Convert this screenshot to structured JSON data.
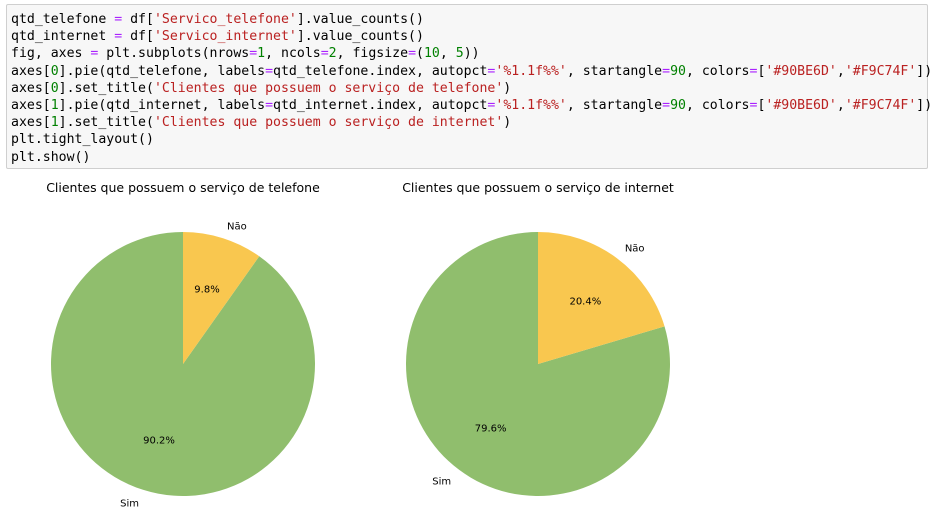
{
  "code": {
    "lines": [
      [
        {
          "t": "qtd_telefone "
        },
        {
          "t": "=",
          "c": "op"
        },
        {
          "t": " df["
        },
        {
          "t": "'Servico_telefone'",
          "c": "str"
        },
        {
          "t": "].value_counts()"
        }
      ],
      [
        {
          "t": "qtd_internet "
        },
        {
          "t": "=",
          "c": "op"
        },
        {
          "t": " df["
        },
        {
          "t": "'Servico_internet'",
          "c": "str"
        },
        {
          "t": "].value_counts()"
        }
      ],
      [
        {
          "t": "fig, axes "
        },
        {
          "t": "=",
          "c": "op"
        },
        {
          "t": " plt.subplots(nrows"
        },
        {
          "t": "=",
          "c": "op"
        },
        {
          "t": "1",
          "c": "num"
        },
        {
          "t": ", ncols"
        },
        {
          "t": "=",
          "c": "op"
        },
        {
          "t": "2",
          "c": "num"
        },
        {
          "t": ", figsize"
        },
        {
          "t": "=",
          "c": "op"
        },
        {
          "t": "("
        },
        {
          "t": "10",
          "c": "num"
        },
        {
          "t": ", "
        },
        {
          "t": "5",
          "c": "num"
        },
        {
          "t": "))"
        }
      ],
      [
        {
          "t": "axes["
        },
        {
          "t": "0",
          "c": "num"
        },
        {
          "t": "].pie(qtd_telefone, labels"
        },
        {
          "t": "=",
          "c": "op"
        },
        {
          "t": "qtd_telefone.index, autopct"
        },
        {
          "t": "=",
          "c": "op"
        },
        {
          "t": "'%1.1f%%'",
          "c": "str"
        },
        {
          "t": ", startangle"
        },
        {
          "t": "=",
          "c": "op"
        },
        {
          "t": "90",
          "c": "num"
        },
        {
          "t": ", colors"
        },
        {
          "t": "=",
          "c": "op"
        },
        {
          "t": "["
        },
        {
          "t": "'#90BE6D'",
          "c": "str"
        },
        {
          "t": ","
        },
        {
          "t": "'#F9C74F'",
          "c": "str"
        },
        {
          "t": "])"
        }
      ],
      [
        {
          "t": "axes["
        },
        {
          "t": "0",
          "c": "num"
        },
        {
          "t": "].set_title("
        },
        {
          "t": "'Clientes que possuem o serviço de telefone'",
          "c": "str"
        },
        {
          "t": ")"
        }
      ],
      [
        {
          "t": "axes["
        },
        {
          "t": "1",
          "c": "num"
        },
        {
          "t": "].pie(qtd_internet, labels"
        },
        {
          "t": "=",
          "c": "op"
        },
        {
          "t": "qtd_internet.index, autopct"
        },
        {
          "t": "=",
          "c": "op"
        },
        {
          "t": "'%1.1f%%'",
          "c": "str"
        },
        {
          "t": ", startangle"
        },
        {
          "t": "=",
          "c": "op"
        },
        {
          "t": "90",
          "c": "num"
        },
        {
          "t": ", colors"
        },
        {
          "t": "=",
          "c": "op"
        },
        {
          "t": "["
        },
        {
          "t": "'#90BE6D'",
          "c": "str"
        },
        {
          "t": ","
        },
        {
          "t": "'#F9C74F'",
          "c": "str"
        },
        {
          "t": "])"
        }
      ],
      [
        {
          "t": "axes["
        },
        {
          "t": "1",
          "c": "num"
        },
        {
          "t": "].set_title("
        },
        {
          "t": "'Clientes que possuem o serviço de internet'",
          "c": "str"
        },
        {
          "t": ")"
        }
      ],
      [
        {
          "t": "plt.tight_layout()"
        }
      ],
      [
        {
          "t": "plt.show()"
        }
      ]
    ]
  },
  "colors": {
    "sim": "#90BE6D",
    "nao": "#F9C74F"
  },
  "chart_data": [
    {
      "type": "pie",
      "title": "Clientes que possuem o serviço de telefone",
      "categories": [
        "Sim",
        "Não"
      ],
      "values": [
        90.2,
        9.8
      ],
      "value_labels": [
        "90.2%",
        "9.8%"
      ],
      "startangle": 90
    },
    {
      "type": "pie",
      "title": "Clientes que possuem o serviço de internet",
      "categories": [
        "Sim",
        "Não"
      ],
      "values": [
        79.6,
        20.4
      ],
      "value_labels": [
        "79.6%",
        "20.4%"
      ],
      "startangle": 90
    }
  ]
}
